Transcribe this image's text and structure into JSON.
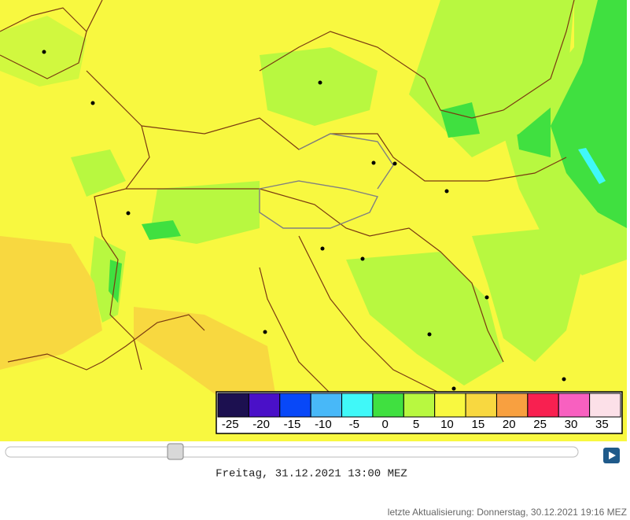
{
  "legend": {
    "values": [
      -25,
      -20,
      -15,
      -10,
      -5,
      0,
      5,
      10,
      15,
      20,
      25,
      30,
      35
    ],
    "colors": [
      "#1c1050",
      "#4a10c8",
      "#0848f8",
      "#48b8f8",
      "#40f8f8",
      "#40e040",
      "#b8f840",
      "#f8f840",
      "#f8d840",
      "#f8a040",
      "#f82050",
      "#f860c0",
      "#fce0e8"
    ]
  },
  "timestamp": "Freitag, 31.12.2021 13:00 MEZ",
  "update": "letzte Aktualisierung: Donnerstag, 30.12.2021 19:16 MEZ"
}
